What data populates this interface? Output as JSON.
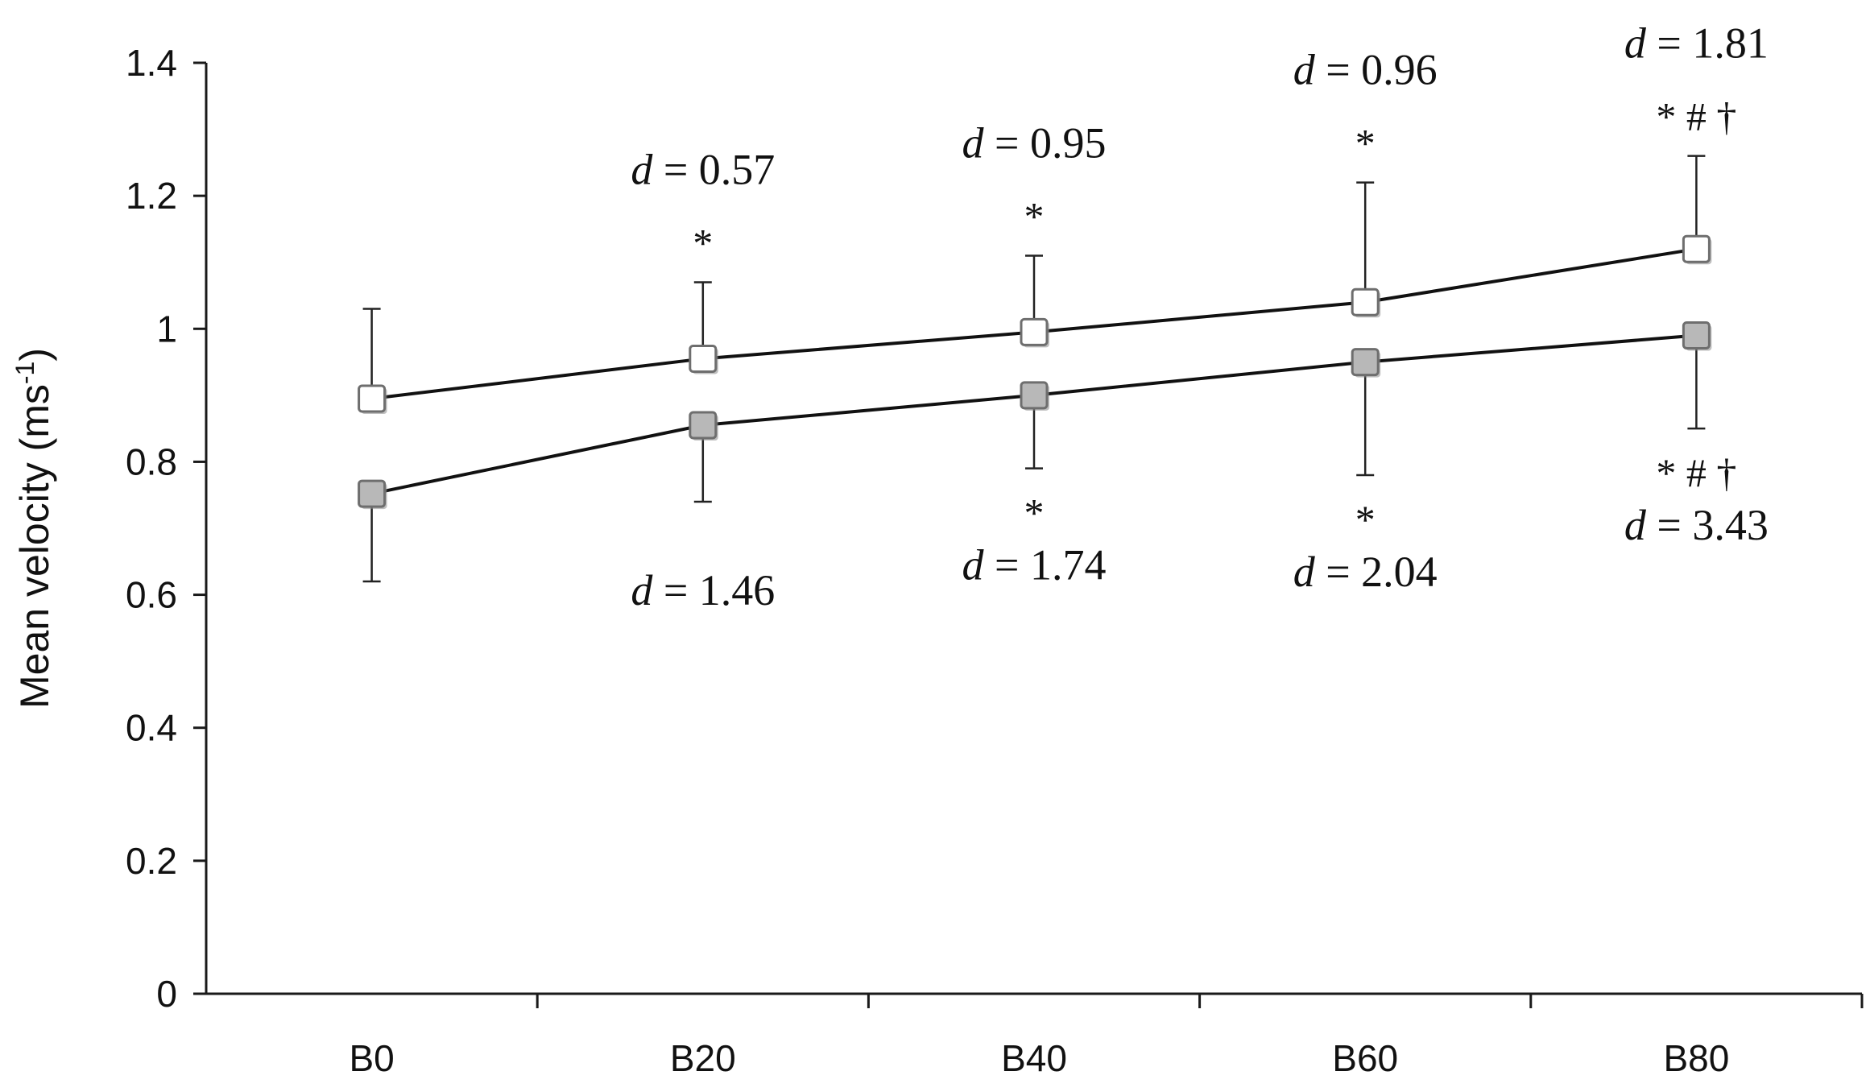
{
  "chart_data": {
    "type": "line",
    "title": "",
    "xlabel": "",
    "ylabel": "Mean velocity (ms",
    "ylabel_sup": "-1",
    "ylabel_close": ")",
    "ylim": [
      0,
      1.4
    ],
    "yticks": [
      "0",
      "0.2",
      "0.4",
      "0.6",
      "0.8",
      "1",
      "1.2",
      "1.4"
    ],
    "categories": [
      "B0",
      "B20",
      "B40",
      "B60",
      "B80"
    ],
    "grid": false,
    "legend": "none",
    "series": [
      {
        "marker": "white-square",
        "color": "#ffffff",
        "values": [
          0.895,
          0.955,
          0.995,
          1.04,
          1.12
        ],
        "error_upper": [
          1.03,
          1.07,
          1.11,
          1.22,
          1.26
        ],
        "error_side": "up",
        "annotations": [
          null,
          {
            "sym": "*",
            "d_prefix": "d",
            "d_rest": " = 0.57"
          },
          {
            "sym": "*",
            "d_prefix": "d",
            "d_rest": " = 0.95"
          },
          {
            "sym": "*",
            "d_prefix": "d",
            "d_rest": " = 0.96"
          },
          {
            "sym": "* # †",
            "d_prefix": "d",
            "d_rest": " = 1.81"
          }
        ]
      },
      {
        "marker": "gray-square",
        "color": "#b8b8b8",
        "values": [
          0.752,
          0.855,
          0.9,
          0.95,
          0.99
        ],
        "error_lower": [
          0.62,
          0.74,
          0.79,
          0.78,
          0.85
        ],
        "error_side": "down",
        "annotations": [
          null,
          {
            "sym": "",
            "d_prefix": "d",
            "d_rest": " = 1.46"
          },
          {
            "sym": "*",
            "d_prefix": "d",
            "d_rest": " = 1.74"
          },
          {
            "sym": "*",
            "d_prefix": "d",
            "d_rest": " = 2.04"
          },
          {
            "sym": "* # †",
            "d_prefix": "d",
            "d_rest": " = 3.43"
          }
        ]
      }
    ]
  }
}
